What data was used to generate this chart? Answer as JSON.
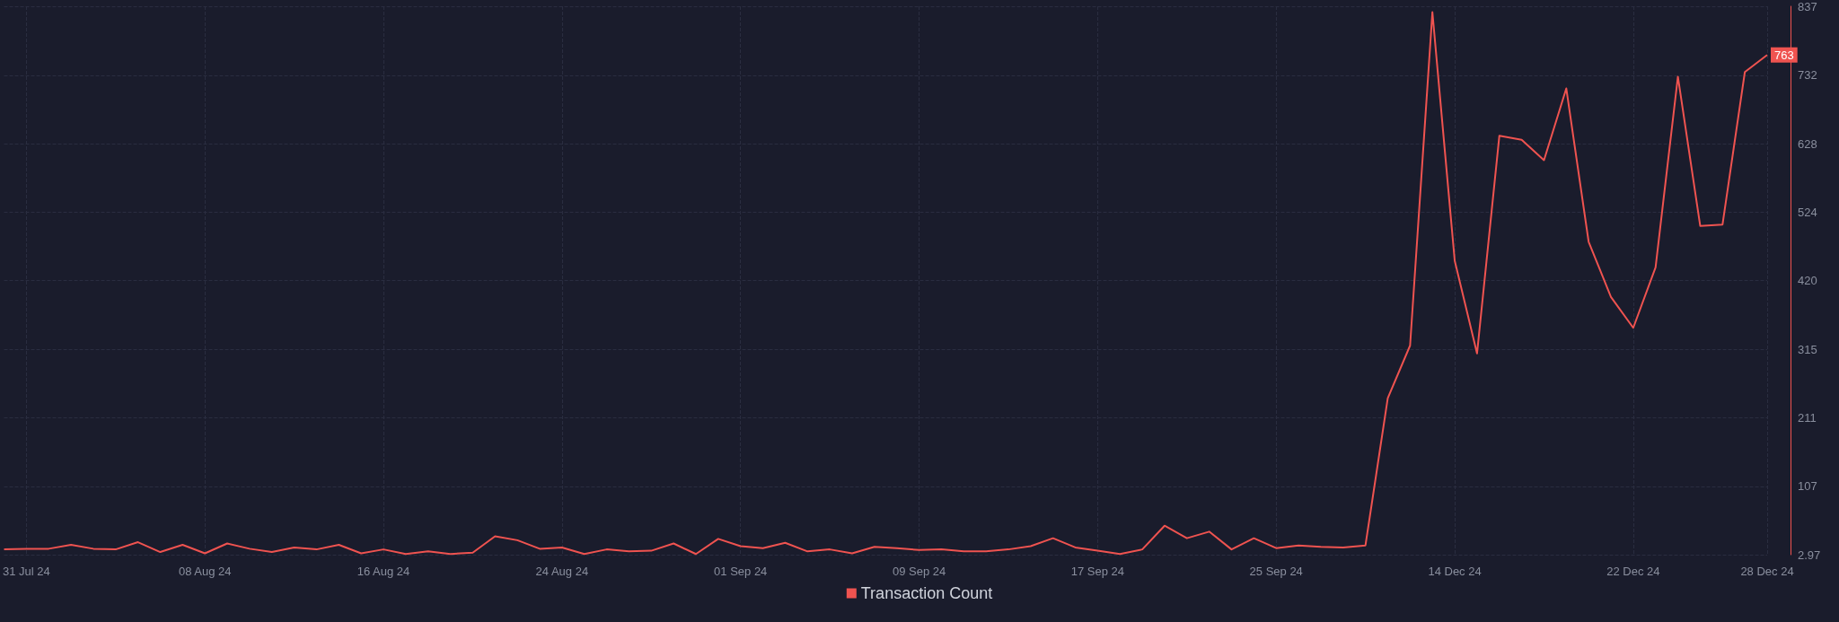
{
  "chart_data": {
    "type": "line",
    "categories": [
      null,
      "31 Jul 24",
      null,
      null,
      null,
      null,
      null,
      null,
      null,
      "08 Aug 24",
      null,
      null,
      null,
      null,
      null,
      null,
      null,
      "16 Aug 24",
      null,
      null,
      null,
      null,
      null,
      null,
      null,
      "24 Aug 24",
      null,
      null,
      null,
      null,
      null,
      null,
      null,
      "01 Sep 24",
      null,
      null,
      null,
      null,
      null,
      null,
      null,
      "09 Sep 24",
      null,
      null,
      null,
      null,
      null,
      null,
      null,
      "17 Sep 24",
      null,
      null,
      null,
      null,
      null,
      null,
      null,
      "25 Sep 24",
      null,
      null,
      null,
      null,
      null,
      null,
      null,
      "14 Dec 24",
      null,
      null,
      null,
      null,
      null,
      null,
      null,
      "22 Dec 24",
      null,
      null,
      null,
      null,
      null,
      "28 Dec 24"
    ],
    "series": [
      {
        "name": "Transaction Count",
        "color": "#ef5350",
        "values": [
          11,
          12,
          12,
          18,
          12,
          11,
          22,
          7,
          18,
          5,
          20,
          12,
          7,
          14,
          11,
          18,
          5,
          11,
          4,
          8,
          4,
          6,
          31,
          25,
          12,
          14,
          4,
          11,
          8,
          9,
          20,
          4,
          27,
          16,
          13,
          21,
          8,
          11,
          5,
          15,
          13,
          10,
          11,
          8,
          8,
          11,
          16,
          28,
          14,
          9,
          4,
          11,
          47,
          28,
          38,
          11,
          28,
          13,
          17,
          15,
          14,
          17,
          241,
          321,
          828,
          450,
          309,
          640,
          634,
          603,
          712,
          479,
          395,
          348,
          440,
          730,
          503,
          505,
          737,
          763
        ],
        "value_labels": [
          null,
          null,
          null,
          null,
          null,
          null,
          null,
          null,
          null,
          null,
          null,
          null,
          null,
          null,
          null,
          null,
          null,
          null,
          null,
          null,
          null,
          null,
          null,
          null,
          null,
          null,
          null,
          null,
          null,
          null,
          null,
          null,
          null,
          null,
          null,
          null,
          null,
          null,
          null,
          null,
          null,
          null,
          null,
          null,
          null,
          null,
          null,
          null,
          null,
          null,
          null,
          null,
          null,
          null,
          null,
          null,
          null,
          null,
          null,
          null,
          null,
          null,
          null,
          null,
          null,
          null,
          null,
          null,
          null,
          null,
          null,
          null,
          null,
          null,
          null,
          null,
          null,
          null,
          null,
          "763"
        ]
      }
    ],
    "ylim": [
      2.97,
      837
    ],
    "yticks": [
      2.97,
      107,
      211,
      315,
      420,
      524,
      628,
      732,
      837
    ],
    "grid": true,
    "legend": "bottom",
    "marker": "none",
    "line_style": "solid"
  }
}
